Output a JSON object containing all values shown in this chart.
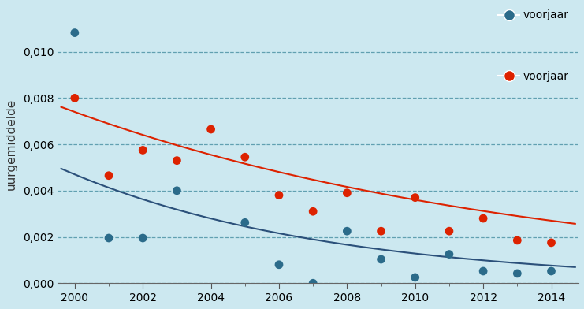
{
  "ylabel": "uurgemiddelde",
  "bg_color": "#cce8f0",
  "ylim": [
    0,
    0.012
  ],
  "xlim": [
    1999.5,
    2014.8
  ],
  "yticks": [
    0.0,
    0.002,
    0.004,
    0.006,
    0.008,
    0.01
  ],
  "ytick_labels": [
    "0,000",
    "0,002",
    "0,004",
    "0,006",
    "0,008",
    "0,010"
  ],
  "xticks_minor": [
    2000,
    2001,
    2002,
    2003,
    2004,
    2005,
    2006,
    2007,
    2008,
    2009,
    2010,
    2011,
    2012,
    2013,
    2014
  ],
  "xticks": [
    2000,
    2002,
    2004,
    2006,
    2008,
    2010,
    2012,
    2014
  ],
  "series1_label": "voorjaar",
  "series1_color": "#2b6b8a",
  "series1_x": [
    2000,
    2001,
    2002,
    2003,
    2005,
    2006,
    2007,
    2008,
    2009,
    2010,
    2011,
    2012,
    2013,
    2014
  ],
  "series1_y": [
    0.01082,
    0.00195,
    0.00195,
    0.004,
    0.00262,
    0.0008,
    0.0,
    0.00225,
    0.00103,
    0.00025,
    0.00125,
    0.00052,
    0.00042,
    0.00052
  ],
  "series2_label": "voorjaar",
  "series2_color": "#dd2200",
  "series2_x": [
    2000,
    2001,
    2002,
    2003,
    2004,
    2005,
    2006,
    2007,
    2008,
    2009,
    2010,
    2011,
    2012,
    2013,
    2014
  ],
  "series2_y": [
    0.008,
    0.00465,
    0.00575,
    0.0053,
    0.00665,
    0.00545,
    0.0038,
    0.0031,
    0.0039,
    0.00225,
    0.0037,
    0.00225,
    0.0028,
    0.00185,
    0.00175
  ],
  "trend1_a": 0.0047,
  "trend1_b": 0.13,
  "trend2_a": 0.0074,
  "trend2_b": 0.072,
  "trend1_color": "#2b507a",
  "trend2_color": "#dd2200",
  "grid_color": "#5599aa",
  "grid_style": "--",
  "legend_marker_size": 10,
  "ylabel_fontsize": 11,
  "tick_fontsize": 10
}
